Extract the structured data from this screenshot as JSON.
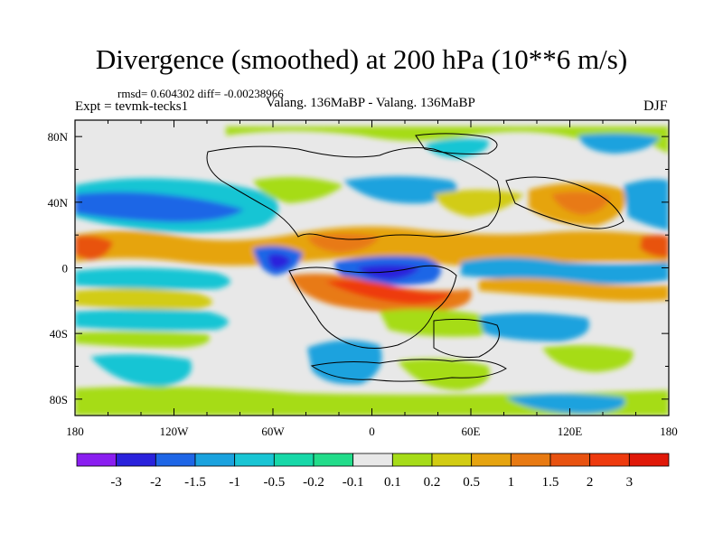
{
  "title": "Divergence (smoothed) at 200 hPa (10**6 m/s)",
  "stats": "rmsd= 0.604302 diff= -0.00238966",
  "experiment": "Expt = tevmk-tecks1",
  "case_label": "Valang. 136MaBP - Valang. 136MaBP",
  "season": "DJF",
  "map_data": {
    "type": "contour-map",
    "projection": "cylindrical-equidistant",
    "lon_range": [
      -180,
      180
    ],
    "lat_range": [
      -90,
      90
    ],
    "lon_ticks": [
      "180",
      "120W",
      "60W",
      "0",
      "60E",
      "120E",
      "180"
    ],
    "lat_ticks": [
      "80N",
      "40N",
      "0",
      "40S",
      "80S"
    ],
    "colorbar": {
      "levels": [
        "-3",
        "-2",
        "-1.5",
        "-1",
        "-0.5",
        "-0.2",
        "-0.1",
        "0.1",
        "0.2",
        "0.5",
        "1",
        "1.5",
        "2",
        "3"
      ],
      "colors": [
        "#8a1ef0",
        "#2a22dc",
        "#1e66e6",
        "#1aa2de",
        "#19c5d4",
        "#17d8a8",
        "#22dc8a",
        "#e8e8e8",
        "#a6dc18",
        "#d2cc12",
        "#e6a410",
        "#e87a12",
        "#e85210",
        "#ee3a0e",
        "#e01808"
      ]
    }
  }
}
